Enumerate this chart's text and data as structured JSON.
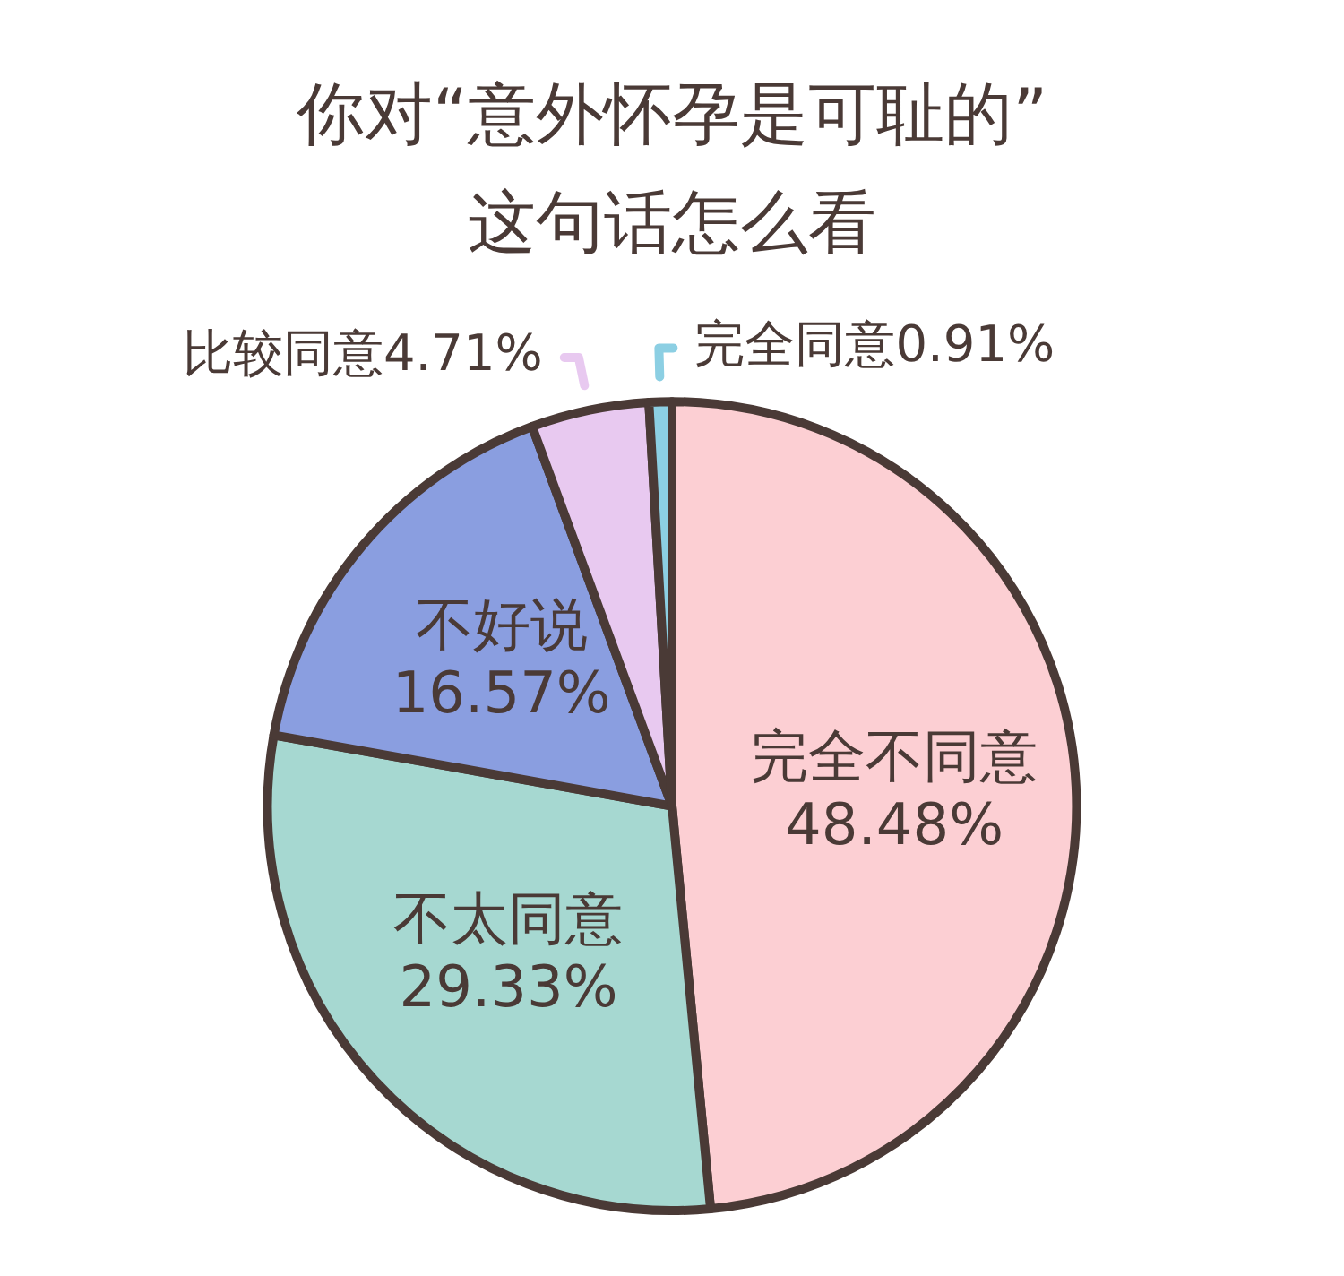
{
  "chart_data": {
    "type": "pie",
    "title": "你对“意外怀孕是可耻的”\n这句话怎么看",
    "categories": [
      "完全不同意",
      "不太同意",
      "不好说",
      "比较同意",
      "完全同意"
    ],
    "values": [
      48.48,
      29.33,
      16.57,
      4.71,
      0.91
    ],
    "colors": [
      "#fccfd3",
      "#a6d8d1",
      "#8a9ee0",
      "#e8c9f0",
      "#8ccfe3"
    ],
    "value_labels": [
      "48.48%",
      "29.33%",
      "16.57%",
      "4.71%",
      "0.91%"
    ]
  }
}
